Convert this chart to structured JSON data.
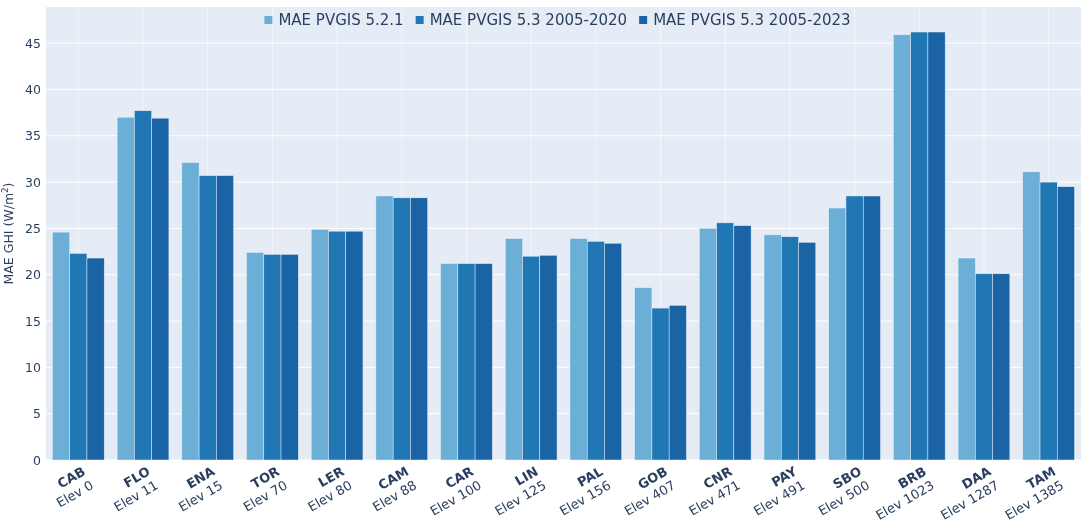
{
  "chart_data": {
    "type": "bar",
    "ylabel": "MAE GHI (W/m$^{2}$)",
    "categories": [
      "CAB\nElev 0",
      "FLO\nElev 11",
      "ENA\nElev 15",
      "TOR\nElev 70",
      "LER\nElev 80",
      "CAM\nElev 88",
      "CAR\nElev 100",
      "LIN\nElev 125",
      "PAL\nElev 156",
      "GOB\nElev 407",
      "CNR\nElev 471",
      "PAY\nElev 491",
      "SBO\nElev 500",
      "BRB\nElev 1023",
      "DAA\nElev 1287",
      "TAM\nElev 1385"
    ],
    "series": [
      {
        "name": "MAE PVGIS 5.2.1",
        "color": "#6baed6",
        "values": [
          24.6,
          37.0,
          32.1,
          22.4,
          24.9,
          28.5,
          21.2,
          23.9,
          23.9,
          18.6,
          25.0,
          24.3,
          27.2,
          45.9,
          21.8,
          31.1
        ]
      },
      {
        "name": "MAE PVGIS 5.3 2005-2020",
        "color": "#2177b4",
        "values": [
          22.3,
          37.7,
          30.7,
          22.2,
          24.7,
          28.3,
          21.2,
          22.0,
          23.6,
          16.4,
          25.6,
          24.1,
          28.5,
          46.2,
          20.1,
          30.0
        ]
      },
      {
        "name": "MAE PVGIS 5.3 2005-2023",
        "color": "#1a63a5",
        "values": [
          21.8,
          36.9,
          30.7,
          22.2,
          24.7,
          28.3,
          21.2,
          22.1,
          23.4,
          16.7,
          25.3,
          23.5,
          28.5,
          46.2,
          20.1,
          29.5
        ]
      }
    ],
    "ylim": [
      0,
      48.9
    ],
    "yticks": [
      0,
      5,
      10,
      15,
      20,
      25,
      30,
      35,
      40,
      45
    ],
    "grid": true,
    "legend": "top"
  }
}
